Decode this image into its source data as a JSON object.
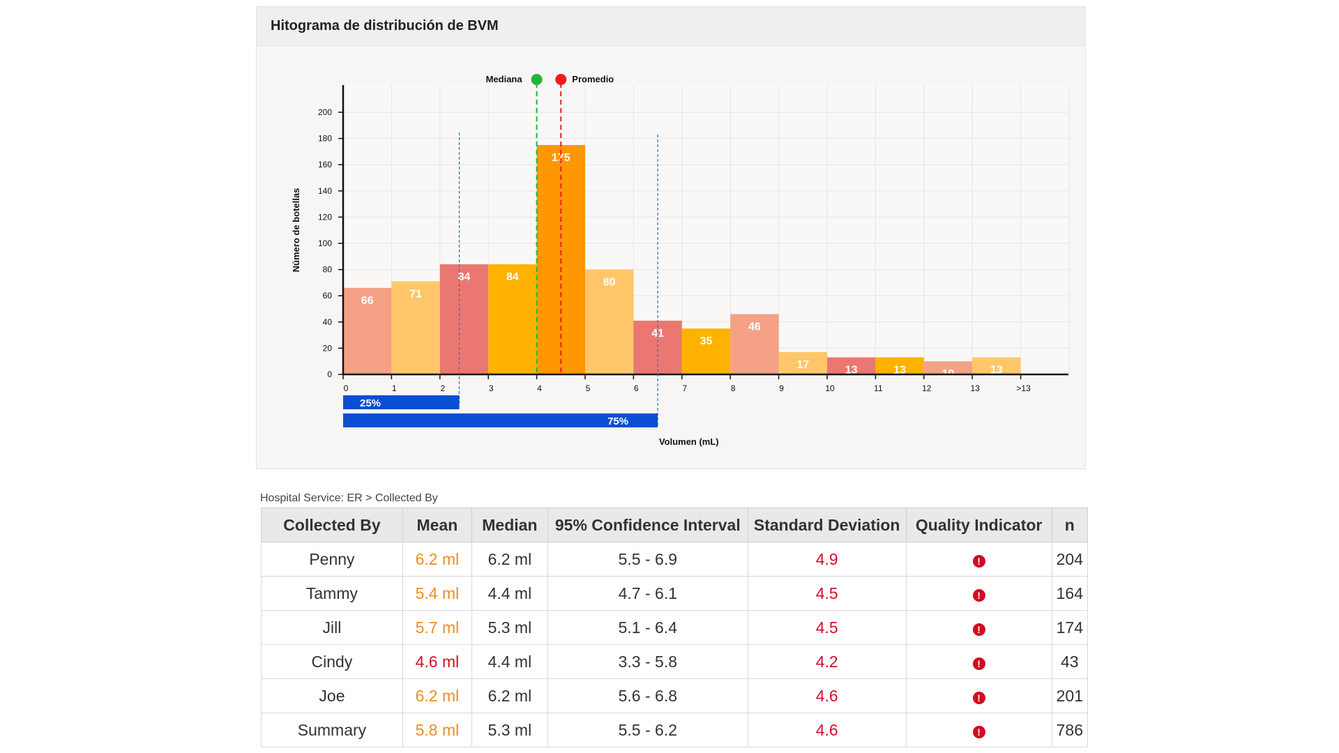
{
  "panel": {
    "title": "Hitograma de distribución de BVM"
  },
  "colors": {
    "bar_palette": [
      "#f5a186",
      "#ffc76a",
      "#ea7871",
      "#ffb200"
    ],
    "mode_bar": "#ff9800",
    "median_line": "#22b53a",
    "mean_line": "#ee1b1b",
    "quartile_bar": "#0a4fd1",
    "quartile_line": "#3b6fd8"
  },
  "chart_data": {
    "type": "bar",
    "title": "",
    "xlabel": "Volumen (mL)",
    "ylabel": "Número de botellas",
    "ylim": [
      0,
      220
    ],
    "yticks": [
      0,
      20,
      40,
      60,
      80,
      100,
      120,
      140,
      160,
      180,
      200
    ],
    "xtick_labels": [
      "0",
      "1",
      "2",
      "3",
      "4",
      "5",
      "6",
      "7",
      "8",
      "9",
      "10",
      "11",
      "12",
      "13",
      ">13"
    ],
    "bins": [
      "0-1",
      "1-2",
      "2-3",
      "3-4",
      "4-5",
      "5-6",
      "6-7",
      "7-8",
      "8-9",
      "9-10",
      "10-11",
      "11-12",
      "12-13",
      "13->13"
    ],
    "values": [
      66,
      71,
      84,
      84,
      175,
      80,
      41,
      35,
      46,
      17,
      13,
      13,
      10,
      13
    ],
    "grid": true,
    "legend": [
      {
        "label": "Mediana",
        "value": 4.0,
        "color": "#22b53a"
      },
      {
        "label": "Promedio",
        "value": 4.5,
        "color": "#ee1b1b"
      }
    ],
    "percentiles": [
      {
        "label": "25%",
        "value": 2.4
      },
      {
        "label": "75%",
        "value": 6.5
      }
    ]
  },
  "table": {
    "breadcrumb": "Hospital Service: ER > Collected By",
    "headers": [
      "Collected By",
      "Mean",
      "Median",
      "95% Confidence Interval",
      "Standard Deviation",
      "Quality Indicator",
      "n"
    ],
    "rows": [
      {
        "name": "Penny",
        "mean": "6.2 ml",
        "mean_status": "orange",
        "median": "6.2 ml",
        "ci": "5.5 - 6.9",
        "sd": "4.9",
        "qi": "!",
        "n": "204"
      },
      {
        "name": "Tammy",
        "mean": "5.4 ml",
        "mean_status": "orange",
        "median": "4.4 ml",
        "ci": "4.7 - 6.1",
        "sd": "4.5",
        "qi": "!",
        "n": "164"
      },
      {
        "name": "Jill",
        "mean": "5.7 ml",
        "mean_status": "orange",
        "median": "5.3 ml",
        "ci": "5.1 - 6.4",
        "sd": "4.5",
        "qi": "!",
        "n": "174"
      },
      {
        "name": "Cindy",
        "mean": "4.6 ml",
        "mean_status": "red",
        "median": "4.4 ml",
        "ci": "3.3 - 5.8",
        "sd": "4.2",
        "qi": "!",
        "n": "43"
      },
      {
        "name": "Joe",
        "mean": "6.2 ml",
        "mean_status": "orange",
        "median": "6.2 ml",
        "ci": "5.6 - 6.8",
        "sd": "4.6",
        "qi": "!",
        "n": "201"
      },
      {
        "name": "Summary",
        "mean": "5.8 ml",
        "mean_status": "orange",
        "median": "5.3 ml",
        "ci": "5.5 - 6.2",
        "sd": "4.6",
        "qi": "!",
        "n": "786"
      }
    ]
  }
}
